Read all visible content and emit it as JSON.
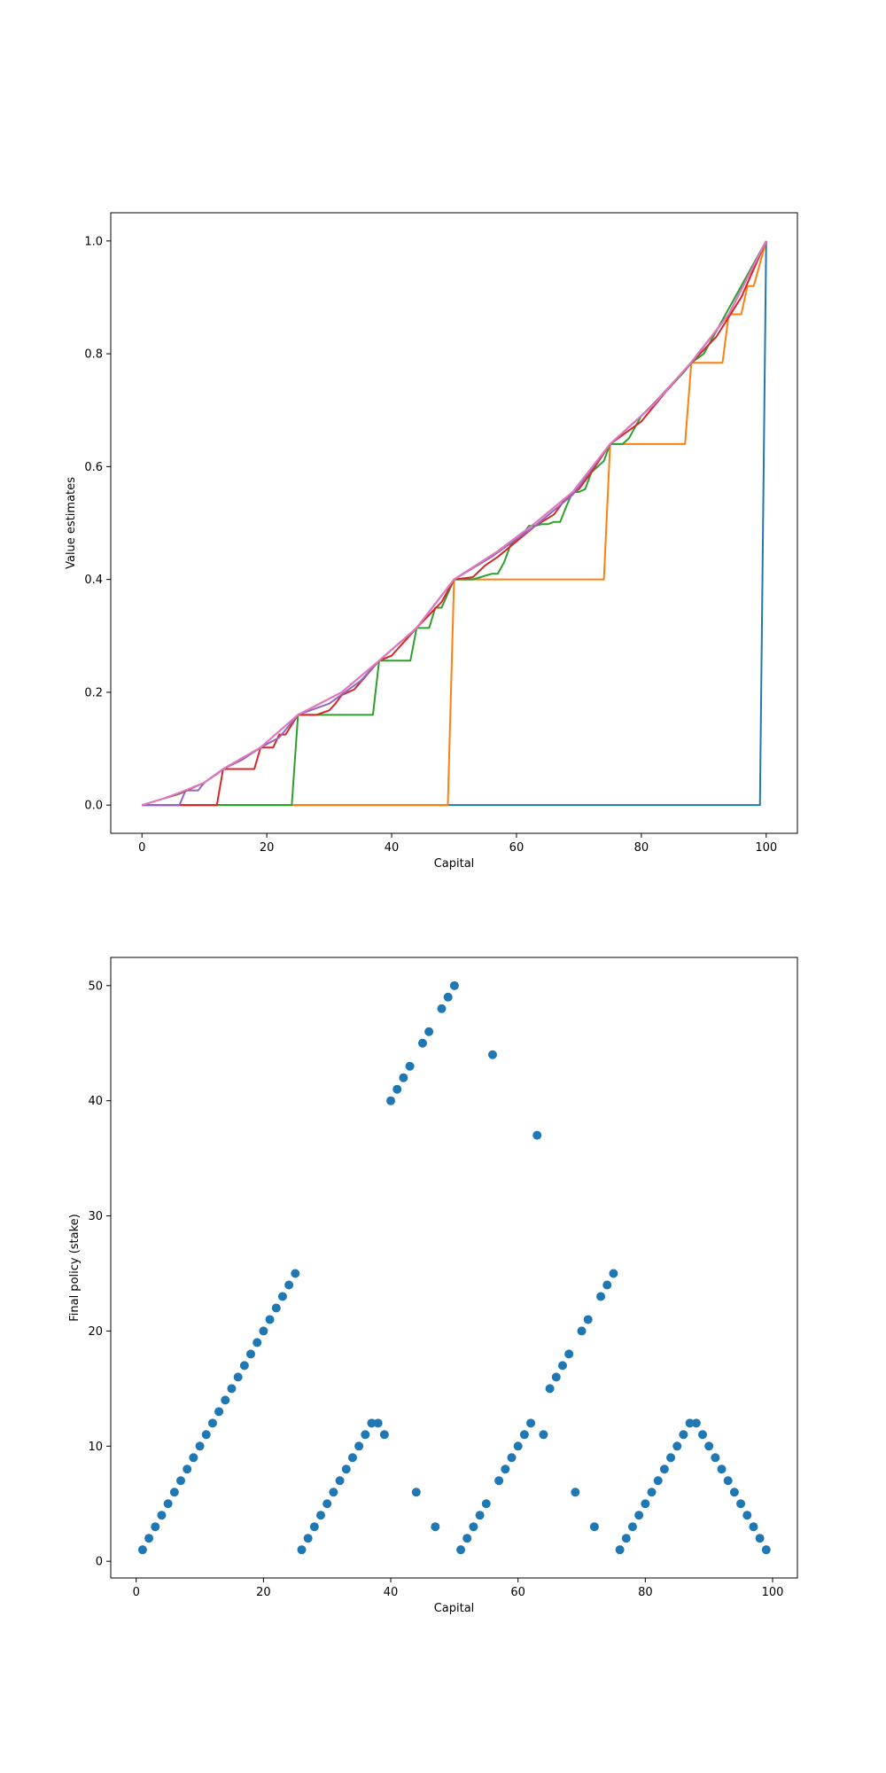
{
  "chart_data": [
    {
      "type": "line",
      "xlabel": "Capital",
      "ylabel": "Value estimates",
      "xlim": [
        -5,
        105
      ],
      "ylim": [
        -0.05,
        1.05
      ],
      "xticks": [
        0,
        20,
        40,
        60,
        80,
        100
      ],
      "yticks": [
        0.0,
        0.2,
        0.4,
        0.6,
        0.8,
        1.0
      ],
      "xtick_labels": [
        "0",
        "20",
        "40",
        "60",
        "80",
        "100"
      ],
      "ytick_labels": [
        "0.0",
        "0.2",
        "0.4",
        "0.6",
        "0.8",
        "1.0"
      ],
      "grid": false,
      "series": [
        {
          "color": "#1f77b4",
          "points": [
            [
              0,
              0
            ],
            [
              99,
              0
            ],
            [
              100,
              1.0
            ]
          ]
        },
        {
          "color": "#ff7f0e",
          "points": [
            [
              0,
              0
            ],
            [
              49,
              0
            ],
            [
              50,
              0.4
            ],
            [
              74,
              0.4
            ],
            [
              75,
              0.64
            ],
            [
              87,
              0.64
            ],
            [
              88,
              0.784
            ],
            [
              93,
              0.784
            ],
            [
              94,
              0.87
            ],
            [
              96,
              0.87
            ],
            [
              97,
              0.92
            ],
            [
              98,
              0.92
            ],
            [
              100,
              1.0
            ]
          ]
        },
        {
          "color": "#2ca02c",
          "points": [
            [
              0,
              0
            ],
            [
              24,
              0
            ],
            [
              25,
              0.16
            ],
            [
              37,
              0.16
            ],
            [
              38,
              0.256
            ],
            [
              43,
              0.256
            ],
            [
              44,
              0.314
            ],
            [
              46,
              0.314
            ],
            [
              47,
              0.35
            ],
            [
              48,
              0.35
            ],
            [
              50,
              0.4
            ],
            [
              53,
              0.4
            ],
            [
              56,
              0.41
            ],
            [
              57,
              0.41
            ],
            [
              58,
              0.43
            ],
            [
              59,
              0.46
            ],
            [
              60,
              0.47
            ],
            [
              61,
              0.48
            ],
            [
              62,
              0.495
            ],
            [
              63,
              0.495
            ],
            [
              64,
              0.498
            ],
            [
              65,
              0.498
            ],
            [
              66,
              0.502
            ],
            [
              67,
              0.502
            ],
            [
              68,
              0.53
            ],
            [
              69,
              0.555
            ],
            [
              70,
              0.555
            ],
            [
              71,
              0.56
            ],
            [
              72,
              0.59
            ],
            [
              73,
              0.6
            ],
            [
              74,
              0.61
            ],
            [
              75,
              0.64
            ],
            [
              77,
              0.64
            ],
            [
              78,
              0.65
            ],
            [
              79,
              0.67
            ],
            [
              80,
              0.69
            ],
            [
              84,
              0.734
            ],
            [
              87,
              0.77
            ],
            [
              88,
              0.784
            ],
            [
              90,
              0.8
            ],
            [
              100,
              1.0
            ]
          ]
        },
        {
          "color": "#d62728",
          "points": [
            [
              0,
              0
            ],
            [
              12,
              0
            ],
            [
              13,
              0.064
            ],
            [
              18,
              0.064
            ],
            [
              19,
              0.102
            ],
            [
              21,
              0.102
            ],
            [
              22,
              0.125
            ],
            [
              23,
              0.125
            ],
            [
              25,
              0.16
            ],
            [
              28,
              0.16
            ],
            [
              30,
              0.168
            ],
            [
              31,
              0.18
            ],
            [
              32,
              0.195
            ],
            [
              34,
              0.205
            ],
            [
              38,
              0.256
            ],
            [
              40,
              0.265
            ],
            [
              44,
              0.314
            ],
            [
              48,
              0.36
            ],
            [
              50,
              0.4
            ],
            [
              53,
              0.404
            ],
            [
              55,
              0.425
            ],
            [
              57,
              0.44
            ],
            [
              63,
              0.495
            ],
            [
              66,
              0.515
            ],
            [
              68,
              0.545
            ],
            [
              70,
              0.56
            ],
            [
              72,
              0.59
            ],
            [
              75,
              0.64
            ],
            [
              80,
              0.68
            ],
            [
              84,
              0.734
            ],
            [
              88,
              0.784
            ],
            [
              92,
              0.83
            ],
            [
              96,
              0.9
            ],
            [
              100,
              1.0
            ]
          ]
        },
        {
          "color": "#9467bd",
          "points": [
            [
              0,
              0
            ],
            [
              6,
              0
            ],
            [
              7,
              0.026
            ],
            [
              9,
              0.026
            ],
            [
              10,
              0.04
            ],
            [
              12,
              0.055
            ],
            [
              13,
              0.064
            ],
            [
              16,
              0.08
            ],
            [
              19,
              0.102
            ],
            [
              22,
              0.12
            ],
            [
              25,
              0.16
            ],
            [
              30,
              0.18
            ],
            [
              35,
              0.22
            ],
            [
              38,
              0.256
            ],
            [
              44,
              0.314
            ],
            [
              50,
              0.4
            ],
            [
              56,
              0.44
            ],
            [
              63,
              0.495
            ],
            [
              69,
              0.55
            ],
            [
              75,
              0.64
            ],
            [
              81,
              0.7
            ],
            [
              88,
              0.784
            ],
            [
              94,
              0.87
            ],
            [
              100,
              1.0
            ]
          ]
        },
        {
          "color": "#8c564b",
          "points": [
            [
              0,
              0
            ],
            [
              3,
              0.01
            ],
            [
              6,
              0.02
            ],
            [
              10,
              0.04
            ],
            [
              13,
              0.064
            ],
            [
              19,
              0.102
            ],
            [
              25,
              0.16
            ],
            [
              32,
              0.2
            ],
            [
              38,
              0.256
            ],
            [
              44,
              0.314
            ],
            [
              50,
              0.4
            ],
            [
              57,
              0.45
            ],
            [
              63,
              0.5
            ],
            [
              69,
              0.555
            ],
            [
              75,
              0.64
            ],
            [
              82,
              0.71
            ],
            [
              88,
              0.785
            ],
            [
              94,
              0.87
            ],
            [
              100,
              1.0
            ]
          ]
        },
        {
          "color": "#e377c2",
          "points": [
            [
              0,
              0
            ],
            [
              3,
              0.01
            ],
            [
              6,
              0.022
            ],
            [
              10,
              0.04
            ],
            [
              13,
              0.064
            ],
            [
              19,
              0.102
            ],
            [
              25,
              0.16
            ],
            [
              32,
              0.2
            ],
            [
              38,
              0.256
            ],
            [
              44,
              0.314
            ],
            [
              50,
              0.4
            ],
            [
              57,
              0.45
            ],
            [
              63,
              0.5
            ],
            [
              69,
              0.555
            ],
            [
              75,
              0.64
            ],
            [
              82,
              0.71
            ],
            [
              88,
              0.785
            ],
            [
              94,
              0.87
            ],
            [
              100,
              1.0
            ]
          ]
        }
      ]
    },
    {
      "type": "scatter",
      "xlabel": "Capital",
      "ylabel": "Final policy (stake)",
      "xlim": [
        -4.0,
        103.9
      ],
      "ylim": [
        -1.45,
        52.45
      ],
      "xticks": [
        0,
        20,
        40,
        60,
        80,
        100
      ],
      "yticks": [
        0,
        10,
        20,
        30,
        40,
        50
      ],
      "xtick_labels": [
        "0",
        "20",
        "40",
        "60",
        "80",
        "100"
      ],
      "ytick_labels": [
        "0",
        "10",
        "20",
        "30",
        "40",
        "50"
      ],
      "grid": false,
      "color": "#1f77b4",
      "x": [
        1,
        2,
        3,
        4,
        5,
        6,
        7,
        8,
        9,
        10,
        11,
        12,
        13,
        14,
        15,
        16,
        17,
        18,
        19,
        20,
        21,
        22,
        23,
        24,
        25,
        26,
        27,
        28,
        29,
        30,
        31,
        32,
        33,
        34,
        35,
        36,
        37,
        38,
        39,
        40,
        41,
        42,
        43,
        44,
        45,
        46,
        47,
        48,
        49,
        50,
        51,
        52,
        53,
        54,
        55,
        56,
        57,
        58,
        59,
        60,
        61,
        62,
        63,
        64,
        65,
        66,
        67,
        68,
        69,
        70,
        71,
        72,
        73,
        74,
        75,
        76,
        77,
        78,
        79,
        80,
        81,
        82,
        83,
        84,
        85,
        86,
        87,
        88,
        89,
        90,
        91,
        92,
        93,
        94,
        95,
        96,
        97,
        98,
        99
      ],
      "y": [
        1,
        2,
        3,
        4,
        5,
        6,
        7,
        8,
        9,
        10,
        11,
        12,
        13,
        14,
        15,
        16,
        17,
        18,
        19,
        20,
        21,
        22,
        23,
        24,
        25,
        1,
        2,
        3,
        4,
        5,
        6,
        7,
        8,
        9,
        10,
        11,
        12,
        12,
        11,
        40,
        41,
        42,
        43,
        6,
        45,
        46,
        3,
        48,
        49,
        50,
        1,
        2,
        3,
        4,
        5,
        44,
        7,
        8,
        9,
        10,
        11,
        12,
        37,
        11,
        15,
        16,
        17,
        18,
        6,
        20,
        21,
        3,
        23,
        24,
        25,
        1,
        2,
        3,
        4,
        5,
        6,
        7,
        8,
        9,
        10,
        11,
        12,
        12,
        11,
        10,
        9,
        8,
        7,
        6,
        5,
        4,
        3,
        2,
        1
      ]
    }
  ]
}
